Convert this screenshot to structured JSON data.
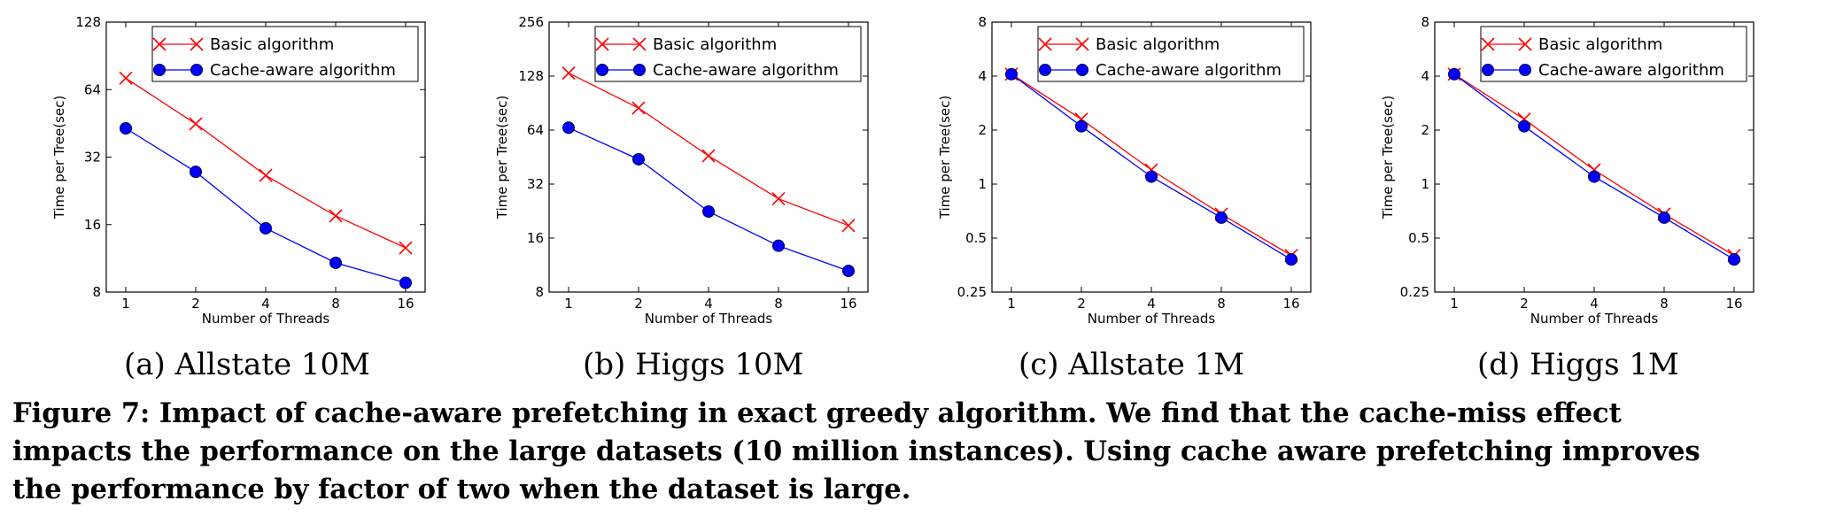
{
  "colors": {
    "basic": "#ff0000",
    "cache_aware": "#0000ff",
    "axis": "#000000"
  },
  "chart_data": [
    {
      "type": "line",
      "subcaption": "(a) Allstate 10M",
      "xlabel": "Number of Threads",
      "ylabel": "Time per Tree(sec)",
      "x_scale": "log2",
      "y_scale": "log2",
      "x": [
        1,
        2,
        4,
        8,
        16
      ],
      "x_ticks": [
        "1",
        "2",
        "4",
        "8",
        "16"
      ],
      "ylim": [
        8,
        128
      ],
      "y_ticks": [
        8,
        16,
        32,
        64,
        128
      ],
      "y_tick_labels": [
        "8",
        "16",
        "32",
        "64",
        "128"
      ],
      "legend_position": "top-right",
      "series": [
        {
          "name": "Basic algorithm",
          "marker": "x",
          "values": [
            72,
            45,
            26.5,
            17.5,
            12.6
          ]
        },
        {
          "name": "Cache-aware algorithm",
          "marker": "circle",
          "values": [
            43,
            27.5,
            15.4,
            10.8,
            8.8
          ]
        }
      ]
    },
    {
      "type": "line",
      "subcaption": "(b) Higgs 10M",
      "xlabel": "Number of Threads",
      "ylabel": "Time per Tree(sec)",
      "x_scale": "log2",
      "y_scale": "log2",
      "x": [
        1,
        2,
        4,
        8,
        16
      ],
      "x_ticks": [
        "1",
        "2",
        "4",
        "8",
        "16"
      ],
      "ylim": [
        8,
        256
      ],
      "y_ticks": [
        8,
        16,
        32,
        64,
        128,
        256
      ],
      "y_tick_labels": [
        "8",
        "16",
        "32",
        "64",
        "128",
        "256"
      ],
      "legend_position": "top-right",
      "series": [
        {
          "name": "Basic algorithm",
          "marker": "x",
          "values": [
            133,
            85,
            46,
            26.5,
            18.8
          ]
        },
        {
          "name": "Cache-aware algorithm",
          "marker": "circle",
          "values": [
            66,
            44,
            22.5,
            14.5,
            10.5
          ]
        }
      ]
    },
    {
      "type": "line",
      "subcaption": "(c) Allstate 1M",
      "xlabel": "Number of Threads",
      "ylabel": "Time per Tree(sec)",
      "x_scale": "log2",
      "y_scale": "log2",
      "x": [
        1,
        2,
        4,
        8,
        16
      ],
      "x_ticks": [
        "1",
        "2",
        "4",
        "8",
        "16"
      ],
      "ylim": [
        0.25,
        8
      ],
      "y_ticks": [
        0.25,
        0.5,
        1,
        2,
        4,
        8
      ],
      "y_tick_labels": [
        "0.25",
        "0.5",
        "1",
        "2",
        "4",
        "8"
      ],
      "legend_position": "top-right",
      "series": [
        {
          "name": "Basic algorithm",
          "marker": "x",
          "values": [
            4.1,
            2.3,
            1.2,
            0.68,
            0.4
          ]
        },
        {
          "name": "Cache-aware algorithm",
          "marker": "circle",
          "values": [
            4.1,
            2.1,
            1.1,
            0.65,
            0.38
          ]
        }
      ]
    },
    {
      "type": "line",
      "subcaption": "(d) Higgs 1M",
      "xlabel": "Number of Threads",
      "ylabel": "Time per Tree(sec)",
      "x_scale": "log2",
      "y_scale": "log2",
      "x": [
        1,
        2,
        4,
        8,
        16
      ],
      "x_ticks": [
        "1",
        "2",
        "4",
        "8",
        "16"
      ],
      "ylim": [
        0.25,
        8
      ],
      "y_ticks": [
        0.25,
        0.5,
        1,
        2,
        4,
        8
      ],
      "y_tick_labels": [
        "0.25",
        "0.5",
        "1",
        "2",
        "4",
        "8"
      ],
      "legend_position": "top-right",
      "series": [
        {
          "name": "Basic algorithm",
          "marker": "x",
          "values": [
            4.1,
            2.3,
            1.2,
            0.68,
            0.4
          ]
        },
        {
          "name": "Cache-aware algorithm",
          "marker": "circle",
          "values": [
            4.1,
            2.1,
            1.1,
            0.65,
            0.38
          ]
        }
      ]
    }
  ],
  "figure_caption": {
    "lines": [
      "Figure 7: Impact of cache-aware prefetching in exact greedy algorithm. We find that the cache-miss effect",
      "impacts the performance on the large datasets (10 million instances). Using cache aware prefetching improves",
      "the performance by factor of two when the dataset is large."
    ]
  }
}
